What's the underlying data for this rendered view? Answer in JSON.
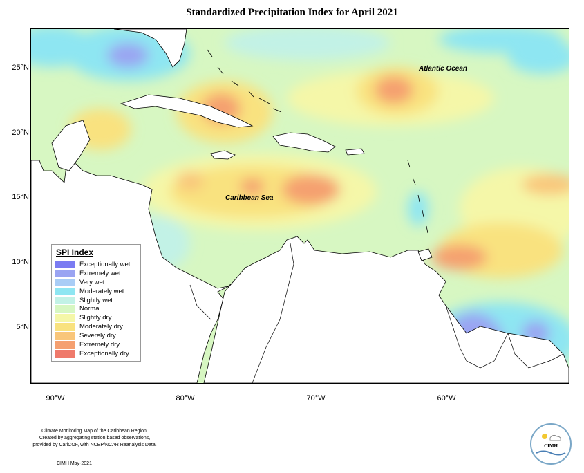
{
  "title": "Standardized Precipitation Index for April 2021",
  "x_ticks": [
    "90°W",
    "80°W",
    "70°W",
    "60°W"
  ],
  "y_ticks": [
    "25°N",
    "20°N",
    "15°N",
    "10°N",
    "5°N"
  ],
  "ocean_labels": [
    "Atlantic Ocean",
    "Caribbean Sea"
  ],
  "legend": {
    "title": "SPI Index",
    "entries": [
      {
        "label": "Exceptionally wet",
        "color": "#7b7cf2"
      },
      {
        "label": "Extremely wet",
        "color": "#9aa4f2"
      },
      {
        "label": "Very wet",
        "color": "#a9cdf6"
      },
      {
        "label": "Moderately wet",
        "color": "#8ee6f2"
      },
      {
        "label": "Slightly wet",
        "color": "#c2f2e6"
      },
      {
        "label": "Normal",
        "color": "#d7f7c2"
      },
      {
        "label": "Slightly dry",
        "color": "#f5f7a8"
      },
      {
        "label": "Moderately dry",
        "color": "#f9e27f"
      },
      {
        "label": "Severely dry",
        "color": "#f9c67a"
      },
      {
        "label": "Extremely dry",
        "color": "#f5a070"
      },
      {
        "label": "Exceptionally dry",
        "color": "#ef7a6b"
      }
    ]
  },
  "footer": {
    "line1": "Climate Monitoring Map of the Caribbean Region.",
    "line2": "Created by aggregating station based observations,",
    "line3": "provided by CariCOF, with NCEP/NCAR Reanalysis Data.",
    "date": "CIMH May-2021"
  },
  "logo": {
    "text": "CIMH"
  }
}
